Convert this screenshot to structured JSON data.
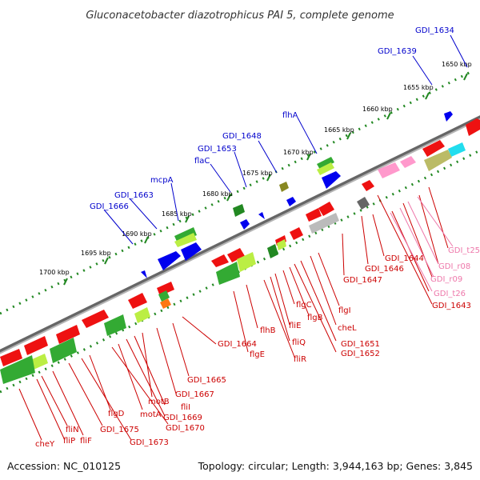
{
  "title": "Gluconacetobacter diazotrophicus PAI 5, complete genome",
  "footer": {
    "accession": "Accession: NC_010125",
    "topology": "Topology: circular; Length: 3,944,163 bp; Genes: 3,845"
  },
  "scale_ticks": [
    "1650 kbp",
    "1655 kbp",
    "1660 kbp",
    "1665 kbp",
    "1670 kbp",
    "1675 kbp",
    "1680 kbp",
    "1685 kbp",
    "1690 kbp",
    "1695 kbp",
    "1700 kbp"
  ],
  "top_labels": [
    "GDI_1634",
    "GDI_1639",
    "flhA",
    "GDI_1648",
    "GDI_1653",
    "flaC",
    "mcpA",
    "GDI_1663",
    "GDI_1666"
  ],
  "bottom_labels": [
    "GDI_t25",
    "GDI_r08",
    "GDI_r09",
    "GDI_t26",
    "GDI_1643",
    "GDI_1644",
    "GDI_1646",
    "GDI_1647",
    "flgI",
    "cheL",
    "GDI_1651",
    "GDI_1652",
    "flgB",
    "flgC",
    "fliE",
    "fliQ",
    "fliR",
    "flhB",
    "flgE",
    "GDI_1664",
    "GDI_1665",
    "GDI_1667",
    "motB",
    "fliI",
    "GDI_1669",
    "motA",
    "GDI_1670",
    "flgD",
    "GDI_1673",
    "GDI_1675",
    "fliF",
    "fliN",
    "fliP",
    "cheY"
  ],
  "colors": {
    "top_label": "#0000cc",
    "bottom_label": "#cc0000",
    "rna_label": "#ee77aa",
    "tick": "#228822",
    "backbone": "#777777"
  }
}
